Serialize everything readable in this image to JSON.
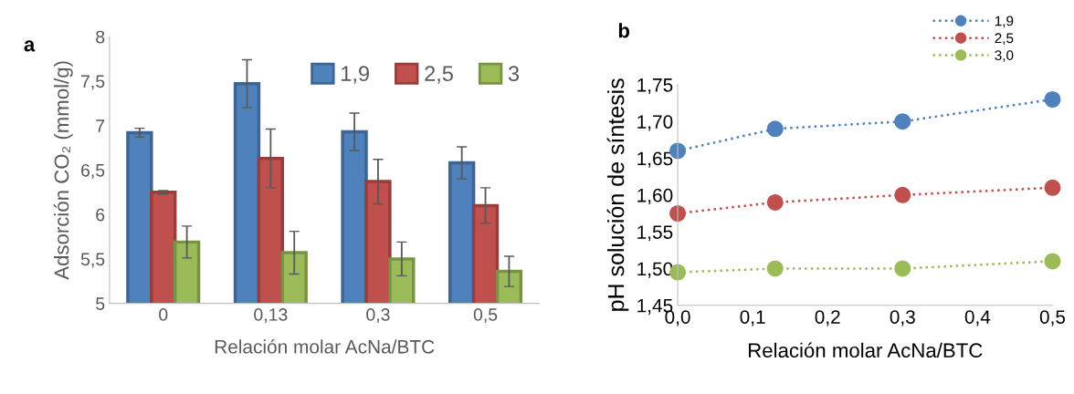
{
  "chart_data": [
    {
      "type": "bar",
      "title": "a",
      "xlabel": "Relación molar AcNa/BTC",
      "ylabel": "Adsorción CO₂ (mmol/g)",
      "categories": [
        "0",
        "0,13",
        "0,3",
        "0,5"
      ],
      "ylim": [
        5,
        8
      ],
      "yticks": [
        5,
        {
          "value": 5.5,
          "label": "5,5"
        },
        6,
        {
          "value": 6.5,
          "label": "6,5"
        },
        7,
        {
          "value": 7.5,
          "label": "7,5"
        },
        8
      ],
      "legend": "top right",
      "grid": false,
      "series": [
        {
          "name": "1,9",
          "color": "#4f81bd",
          "values": [
            6.92,
            7.47,
            6.93,
            6.58
          ],
          "errors": [
            0.05,
            0.27,
            0.21,
            0.18
          ]
        },
        {
          "name": "2,5",
          "color": "#c0504d",
          "values": [
            6.25,
            6.63,
            6.37,
            6.1
          ],
          "errors": [
            0.02,
            0.33,
            0.25,
            0.2
          ]
        },
        {
          "name": "3",
          "color": "#9bbb59",
          "values": [
            5.69,
            5.57,
            5.5,
            5.36
          ],
          "errors": [
            0.18,
            0.24,
            0.19,
            0.17
          ]
        }
      ]
    },
    {
      "type": "line",
      "title": "b",
      "xlabel": "Relación molar AcNa/BTC",
      "ylabel": "pH solución de síntesis",
      "x": [
        0,
        0.13,
        0.3,
        0.5
      ],
      "xlim": [
        0,
        0.5
      ],
      "xticks": [
        {
          "value": 0,
          "label": "0,0"
        },
        {
          "value": 0.1,
          "label": "0,1"
        },
        {
          "value": 0.2,
          "label": "0,2"
        },
        {
          "value": 0.3,
          "label": "0,3"
        },
        {
          "value": 0.4,
          "label": "0,4"
        },
        {
          "value": 0.5,
          "label": "0,5"
        }
      ],
      "ylim": [
        1.45,
        1.75
      ],
      "yticks": [
        {
          "value": 1.45,
          "label": "1,45"
        },
        {
          "value": 1.5,
          "label": "1,50"
        },
        {
          "value": 1.55,
          "label": "1,55"
        },
        {
          "value": 1.6,
          "label": "1,60"
        },
        {
          "value": 1.65,
          "label": "1,65"
        },
        {
          "value": 1.7,
          "label": "1,70"
        },
        {
          "value": 1.75,
          "label": "1,75"
        }
      ],
      "legend": "top right",
      "grid": false,
      "marker": "circle",
      "line_style": "dotted",
      "series": [
        {
          "name": "1,9",
          "color": "#4f81bd",
          "values": [
            1.66,
            1.69,
            1.7,
            1.73
          ]
        },
        {
          "name": "2,5",
          "color": "#c0504d",
          "values": [
            1.575,
            1.59,
            1.6,
            1.61
          ]
        },
        {
          "name": "3,0",
          "color": "#9bbb59",
          "values": [
            1.495,
            1.5,
            1.5,
            1.51
          ]
        }
      ]
    }
  ]
}
